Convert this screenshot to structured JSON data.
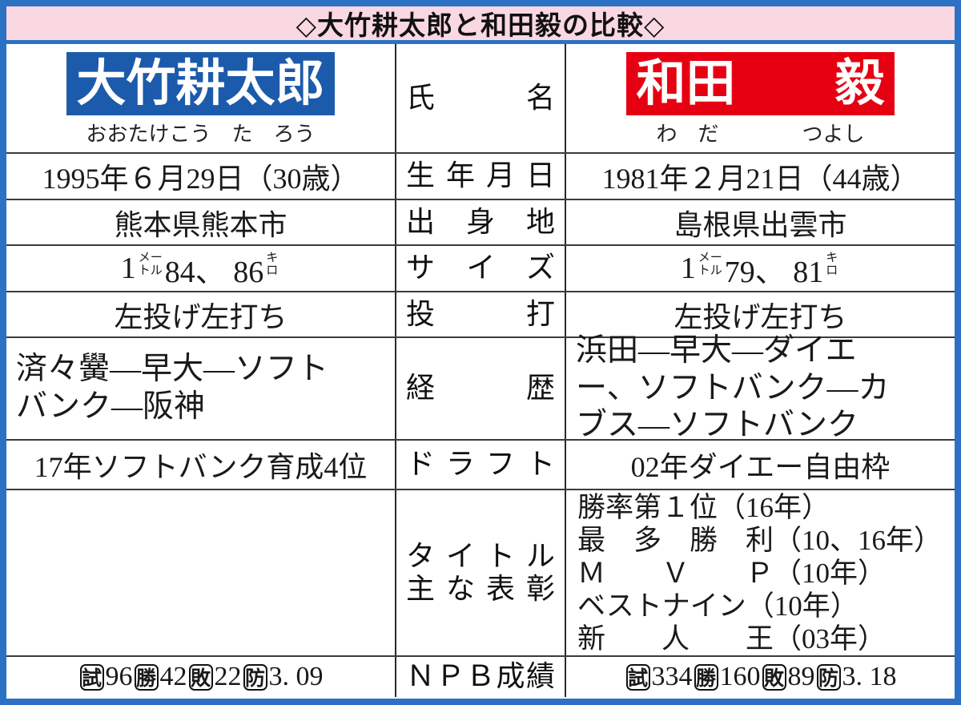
{
  "title": "◇大竹耕太郎と和田毅の比較◇",
  "colors": {
    "frame_blue": "#2b71c4",
    "title_pink": "#f9d8e2",
    "otake_blue": "#1c5bab",
    "wada_red": "#e60012"
  },
  "players": {
    "otake": {
      "name": "大竹耕太郎",
      "furigana": "おおたけこう　た　ろう"
    },
    "wada": {
      "name": "和田　　毅",
      "furigana": "わ　だ　　　　つよし"
    }
  },
  "rows": {
    "name": {
      "label": "氏名"
    },
    "birth": {
      "label": "生年月日",
      "otake": "1995年６月29日（30歳）",
      "wada": "1981年２月21日（44歳）"
    },
    "origin": {
      "label": "出身地",
      "otake": "熊本県熊本市",
      "wada": "島根県出雲市"
    },
    "size": {
      "label": "サイズ",
      "otake": {
        "pre": "1",
        "meter_top": "メー",
        "meter_bottom": "トル",
        "mid": "84、 86",
        "kilo_top": "キ",
        "kilo_bottom": "ロ"
      },
      "wada": {
        "pre": "1",
        "meter_top": "メー",
        "meter_bottom": "トル",
        "mid": "79、 81",
        "kilo_top": "キ",
        "kilo_bottom": "ロ"
      }
    },
    "throw_bat": {
      "label": "投打",
      "otake": "左投げ左打ち",
      "wada": "左投げ左打ち"
    },
    "career": {
      "label": "経歴",
      "otake": "済々黌―早大―ソフト\nバンク―阪神",
      "wada": "浜田―早大―ダイエ\nー、ソフトバンク―カ\nブス―ソフトバンク"
    },
    "draft": {
      "label": "ドラフト",
      "otake": "17年ソフトバンク育成4位",
      "wada": "02年ダイエー自由枠"
    },
    "titles": {
      "label_line1": "タイトル",
      "label_line2": "主な表彰",
      "otake": "",
      "wada": "勝率第１位（16年）\n最　多　勝　利（10、16年）\nＭ　　Ｖ　　Ｐ（10年）\nベストナイン（10年）\n新　　人　　王（03年）"
    },
    "npb": {
      "label": "ＮＰＢ成績",
      "otake": {
        "games_mark": "試",
        "games": "96",
        "wins_mark": "勝",
        "wins": "42",
        "losses_mark": "敗",
        "losses": "22",
        "era_mark": "防",
        "era": "3. 09"
      },
      "wada": {
        "games_mark": "試",
        "games": "334",
        "wins_mark": "勝",
        "wins": "160",
        "losses_mark": "敗",
        "losses": "89",
        "era_mark": "防",
        "era": "3. 18"
      }
    }
  }
}
